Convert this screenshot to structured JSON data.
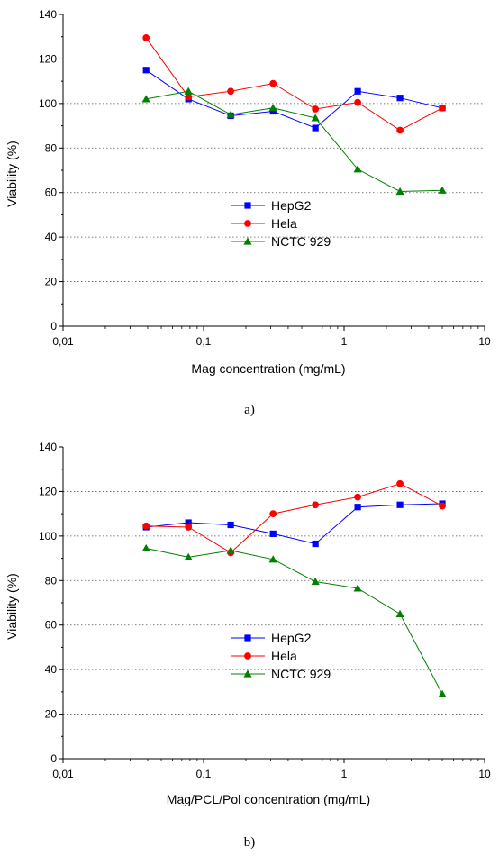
{
  "chart_data": [
    {
      "type": "line",
      "caption": "a)",
      "xlabel": "Mag concentration (mg/mL)",
      "ylabel": "Viability (%)",
      "x_scale": "log",
      "xlim": [
        0.01,
        10
      ],
      "ylim": [
        0,
        140
      ],
      "x_ticks": [
        0.01,
        0.1,
        1,
        10
      ],
      "x_tick_labels": [
        "0,01",
        "0,1",
        "1",
        "10"
      ],
      "y_ticks": [
        0,
        20,
        40,
        60,
        80,
        100,
        120,
        140
      ],
      "y_tick_labels": [
        "0",
        "20",
        "40",
        "60",
        "80",
        "100",
        "120",
        "140"
      ],
      "grid": "horizontal dotted",
      "legend_position": "center-right",
      "series": [
        {
          "name": "HepG2",
          "color": "#0000ff",
          "marker": "square",
          "x": [
            0.039,
            0.078,
            0.156,
            0.3125,
            0.625,
            1.25,
            2.5,
            5
          ],
          "y": [
            115,
            102,
            94.5,
            96.5,
            89,
            105.5,
            102.5,
            98
          ]
        },
        {
          "name": "Hela",
          "color": "#ff0000",
          "marker": "circle",
          "x": [
            0.039,
            0.078,
            0.156,
            0.3125,
            0.625,
            1.25,
            2.5,
            5
          ],
          "y": [
            129.5,
            103,
            105.5,
            109,
            97.5,
            100.5,
            88,
            98
          ]
        },
        {
          "name": "NCTC 929",
          "color": "#008000",
          "marker": "triangle",
          "x": [
            0.039,
            0.078,
            0.156,
            0.3125,
            0.625,
            1.25,
            2.5,
            5
          ],
          "y": [
            102,
            105.5,
            95,
            98,
            93.5,
            70.5,
            60.5,
            61
          ]
        }
      ]
    },
    {
      "type": "line",
      "caption": "b)",
      "xlabel": "Mag/PCL/Pol concentration (mg/mL)",
      "ylabel": "Viability (%)",
      "x_scale": "log",
      "xlim": [
        0.01,
        10
      ],
      "ylim": [
        0,
        140
      ],
      "x_ticks": [
        0.01,
        0.1,
        1,
        10
      ],
      "x_tick_labels": [
        "0,01",
        "0,1",
        "1",
        "10"
      ],
      "y_ticks": [
        0,
        20,
        40,
        60,
        80,
        100,
        120,
        140
      ],
      "y_tick_labels": [
        "0",
        "20",
        "40",
        "60",
        "80",
        "100",
        "120",
        "140"
      ],
      "grid": "horizontal dotted",
      "legend_position": "center-right",
      "series": [
        {
          "name": "HepG2",
          "color": "#0000ff",
          "marker": "square",
          "x": [
            0.039,
            0.078,
            0.156,
            0.3125,
            0.625,
            1.25,
            2.5,
            5
          ],
          "y": [
            104,
            106,
            105,
            101,
            96.5,
            113,
            114,
            114.5
          ]
        },
        {
          "name": "Hela",
          "color": "#ff0000",
          "marker": "circle",
          "x": [
            0.039,
            0.078,
            0.156,
            0.3125,
            0.625,
            1.25,
            2.5,
            5
          ],
          "y": [
            104.5,
            104,
            92.5,
            110,
            114,
            117.5,
            123.5,
            113.5
          ]
        },
        {
          "name": "NCTC 929",
          "color": "#008000",
          "marker": "triangle",
          "x": [
            0.039,
            0.078,
            0.156,
            0.3125,
            0.625,
            1.25,
            2.5,
            5
          ],
          "y": [
            94.5,
            90.5,
            93.5,
            89.5,
            79.5,
            76.5,
            65,
            29
          ]
        }
      ]
    }
  ]
}
